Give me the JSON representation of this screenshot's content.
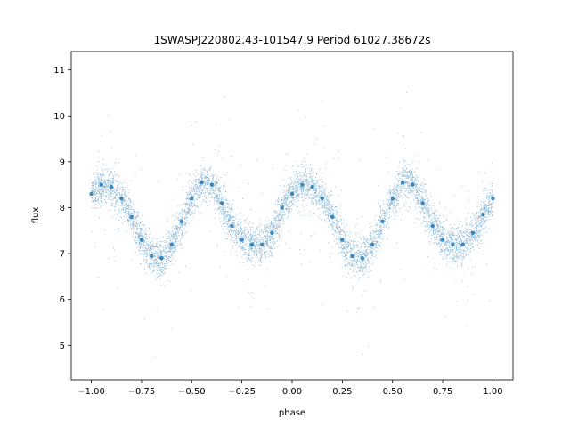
{
  "chart_data": {
    "type": "scatter",
    "title": "1SWASPJ220802.43-101547.9 Period 61027.38672s",
    "xlabel": "phase",
    "ylabel": "flux",
    "xlim": [
      -1.1,
      1.1
    ],
    "ylim": [
      4.25,
      11.4
    ],
    "xticks": [
      -1.0,
      -0.75,
      -0.5,
      -0.25,
      0.0,
      0.25,
      0.5,
      0.75,
      1.0
    ],
    "xtick_labels": [
      "−1.00",
      "−0.75",
      "−0.50",
      "−0.25",
      "0.00",
      "0.25",
      "0.50",
      "0.75",
      "1.00"
    ],
    "yticks": [
      5,
      6,
      7,
      8,
      9,
      10,
      11
    ],
    "ytick_labels": [
      "5",
      "6",
      "7",
      "8",
      "9",
      "10",
      "11"
    ],
    "grid": false,
    "marker_color": "#1f77b4",
    "series": [
      {
        "x": [
          -1.0,
          -0.95,
          -0.9,
          -0.85,
          -0.8,
          -0.75,
          -0.7,
          -0.65,
          -0.6,
          -0.55,
          -0.5,
          -0.45,
          -0.4,
          -0.35,
          -0.3,
          -0.25,
          -0.2,
          -0.15,
          -0.1,
          -0.05,
          0.0,
          0.05,
          0.1,
          0.15,
          0.2,
          0.25,
          0.3,
          0.35,
          0.4,
          0.45,
          0.5,
          0.55,
          0.6,
          0.65,
          0.7,
          0.75,
          0.8,
          0.85,
          0.9,
          0.95,
          1.0
        ],
        "y": [
          8.3,
          8.5,
          8.45,
          8.2,
          7.8,
          7.3,
          6.95,
          6.9,
          7.2,
          7.7,
          8.2,
          8.55,
          8.5,
          8.1,
          7.6,
          7.3,
          7.2,
          7.2,
          7.45,
          8.0,
          8.3,
          8.5,
          8.45,
          8.2,
          7.8,
          7.3,
          6.95,
          6.9,
          7.2,
          7.7,
          8.2,
          8.55,
          8.5,
          8.1,
          7.6,
          7.3,
          7.2,
          7.2,
          7.45,
          7.85,
          8.2
        ]
      }
    ]
  }
}
